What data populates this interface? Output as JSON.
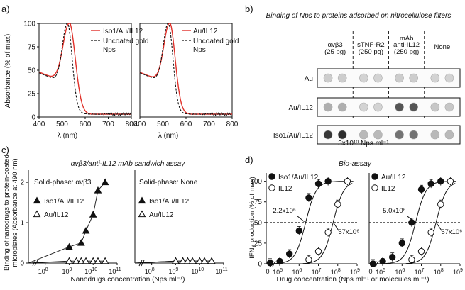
{
  "panels": {
    "a": {
      "label": "a)",
      "ylabel": "Absorbance (% of max)",
      "xlabel": "λ (nm)",
      "yticks": [
        "0",
        "25",
        "50",
        "75",
        "100"
      ],
      "xticks": [
        "400",
        "500",
        "600",
        "700",
        "800"
      ],
      "left_legend": {
        "solid": "Iso1/Au/IL12",
        "dashed_l1": "Uncoated gold",
        "dashed_l2": "Nps"
      },
      "right_legend": {
        "solid": "Au/IL12",
        "dashed_l1": "Uncoated gold",
        "dashed_l2": "Nps"
      }
    },
    "b": {
      "label": "b)",
      "title": "Binding of Nps to proteins adsorbed on nitrocellulose filters",
      "columns": [
        {
          "l1": "",
          "l2": "αvβ3",
          "l3": "(25 pg)"
        },
        {
          "l1": "",
          "l2": "sTNF-R2",
          "l3": "(250 pg)"
        },
        {
          "l1": "mAb",
          "l2": "anti-IL12",
          "l3": "(250 pg)"
        },
        {
          "l1": "",
          "l2": "None",
          "l3": ""
        }
      ],
      "rows": [
        "Au",
        "Au/IL12",
        "Iso1/Au/IL12"
      ],
      "dot_intensity": [
        [
          0.15,
          0.15,
          0.12,
          0.12,
          0.15,
          0.15,
          0.12,
          0.12
        ],
        [
          0.3,
          0.3,
          0.12,
          0.12,
          0.75,
          0.75,
          0.18,
          0.18
        ],
        [
          0.9,
          0.95,
          0.25,
          0.25,
          0.6,
          0.6,
          0.25,
          0.25
        ]
      ],
      "caption": "3x10¹⁰ Nps ml⁻¹"
    },
    "c": {
      "label": "c)",
      "title": "αvβ3/anti-IL12 mAb sandwich assay",
      "ylabel_l1": "Binding of nanodrugs to protein-coated",
      "ylabel_l2": "microplates (Absorbance at 490 nm)",
      "xlabel": "Nanodrugs concentration (Nps ml⁻¹)",
      "yticks": [
        "0",
        "1",
        "2"
      ],
      "xticks_exp": [
        "8",
        "9",
        "10",
        "11"
      ],
      "left": {
        "solidphase": "Solid-phase: αvβ3",
        "legend_filled": "Iso1/Au/IL12",
        "legend_open": "Au/IL12"
      },
      "right": {
        "solidphase": "Solid-phase: None",
        "legend_filled": "Iso1/Au/IL12",
        "legend_open": "Au/IL12"
      }
    },
    "d": {
      "label": "d)",
      "title": "Bio-assay",
      "ylabel": "IFNγ production (% of max)",
      "xlabel": "Drug concentration (Nps ml⁻¹ or molecules ml⁻¹)",
      "yticks": [
        "0",
        "25",
        "50",
        "75",
        "100"
      ],
      "xticks_exp": [
        "5",
        "6",
        "7",
        "8",
        "9"
      ],
      "left": {
        "legend_filled": "Iso1/Au/IL12",
        "legend_open": "IL12",
        "ann1": "2.2x10⁶",
        "ann2": "57x10⁶"
      },
      "right": {
        "legend_filled": "Au/IL12",
        "legend_open": "IL12",
        "ann1": "5.0x10⁶",
        "ann2": "57x10⁶"
      }
    }
  },
  "chart_data": [
    {
      "type": "line",
      "panel": "a-left",
      "xlabel": "λ (nm)",
      "ylabel": "Absorbance (% of max)",
      "xlim": [
        400,
        800
      ],
      "ylim": [
        0,
        100
      ],
      "series": [
        {
          "name": "Iso1/Au/IL12",
          "style": "solid",
          "color": "#e0312a",
          "peak": 530,
          "width": 38
        },
        {
          "name": "Uncoated gold Nps",
          "style": "dashed",
          "color": "#111111",
          "peak": 522,
          "width": 30
        }
      ]
    },
    {
      "type": "line",
      "panel": "a-right",
      "xlabel": "λ (nm)",
      "ylabel": "Absorbance (% of max)",
      "xlim": [
        400,
        800
      ],
      "ylim": [
        0,
        100
      ],
      "series": [
        {
          "name": "Au/IL12",
          "style": "solid",
          "color": "#e0312a",
          "peak": 528,
          "width": 35
        },
        {
          "name": "Uncoated gold Nps",
          "style": "dashed",
          "color": "#111111",
          "peak": 522,
          "width": 30
        }
      ]
    },
    {
      "type": "scatter",
      "panel": "c-left",
      "xlabel": "Nanodrugs concentration (Nps ml⁻¹)",
      "ylabel": "Binding of nanodrugs to protein-coated microplates (Absorbance at 490 nm)",
      "log_x": true,
      "xlim_exp": [
        7.3,
        11
      ],
      "ylim": [
        0,
        2.3
      ],
      "series": [
        {
          "name": "Iso1/Au/IL12",
          "marker": "filled-triangle",
          "x_exp": [
            9.0,
            9.5,
            9.7,
            10.0,
            10.2,
            10.5
          ],
          "y": [
            0.4,
            0.5,
            0.8,
            1.2,
            1.8,
            2.0
          ]
        },
        {
          "name": "Au/IL12",
          "marker": "open-triangle",
          "x_exp": [
            9.0,
            9.3,
            9.5,
            9.7,
            10.0,
            10.2,
            10.5
          ],
          "y": [
            0.05,
            0.05,
            0.05,
            0.05,
            0.05,
            0.05,
            0.05
          ]
        }
      ]
    },
    {
      "type": "scatter",
      "panel": "c-right",
      "log_x": true,
      "xlim_exp": [
        7.3,
        11
      ],
      "ylim": [
        0,
        2.3
      ],
      "series": [
        {
          "name": "Iso1/Au/IL12",
          "marker": "filled-triangle",
          "x_exp": [
            9.0,
            9.3,
            9.5,
            9.7,
            10.0,
            10.2,
            10.5
          ],
          "y": [
            0.05,
            0.05,
            0.05,
            0.05,
            0.05,
            0.05,
            0.05
          ]
        },
        {
          "name": "Au/IL12",
          "marker": "open-triangle",
          "x_exp": [
            9.0,
            9.3,
            9.5,
            9.7,
            10.0,
            10.2,
            10.5
          ],
          "y": [
            0.05,
            0.05,
            0.05,
            0.05,
            0.05,
            0.05,
            0.05
          ]
        }
      ]
    },
    {
      "type": "scatter",
      "panel": "d-left",
      "xlabel": "Drug concentration (Nps ml⁻¹ or molecules ml⁻¹)",
      "ylabel": "IFNγ production (% of max)",
      "log_x": true,
      "xlim_exp": [
        4.3,
        9
      ],
      "ylim": [
        0,
        110
      ],
      "series": [
        {
          "name": "Iso1/Au/IL12",
          "marker": "filled-circle",
          "ec50_exp": 6.34,
          "x_exp": [
            4.5,
            5.0,
            5.5,
            6.0,
            6.5,
            7.0,
            7.5
          ],
          "y": [
            1,
            3,
            12,
            40,
            80,
            97,
            100
          ]
        },
        {
          "name": "IL12",
          "marker": "open-circle",
          "ec50_exp": 7.76,
          "x_exp": [
            6.5,
            7.0,
            7.5,
            8.0,
            8.5
          ],
          "y": [
            5,
            15,
            38,
            72,
            100
          ]
        }
      ]
    },
    {
      "type": "scatter",
      "panel": "d-right",
      "log_x": true,
      "xlim_exp": [
        4.3,
        9
      ],
      "ylim": [
        0,
        110
      ],
      "series": [
        {
          "name": "Au/IL12",
          "marker": "filled-circle",
          "ec50_exp": 6.7,
          "x_exp": [
            4.5,
            5.0,
            5.5,
            6.0,
            6.5,
            7.0,
            7.5,
            8.0
          ],
          "y": [
            0,
            3,
            8,
            25,
            50,
            90,
            97,
            100
          ]
        },
        {
          "name": "IL12",
          "marker": "open-circle",
          "ec50_exp": 7.76,
          "x_exp": [
            6.5,
            7.0,
            7.5,
            8.0,
            8.5
          ],
          "y": [
            5,
            15,
            38,
            72,
            100
          ]
        }
      ]
    }
  ]
}
